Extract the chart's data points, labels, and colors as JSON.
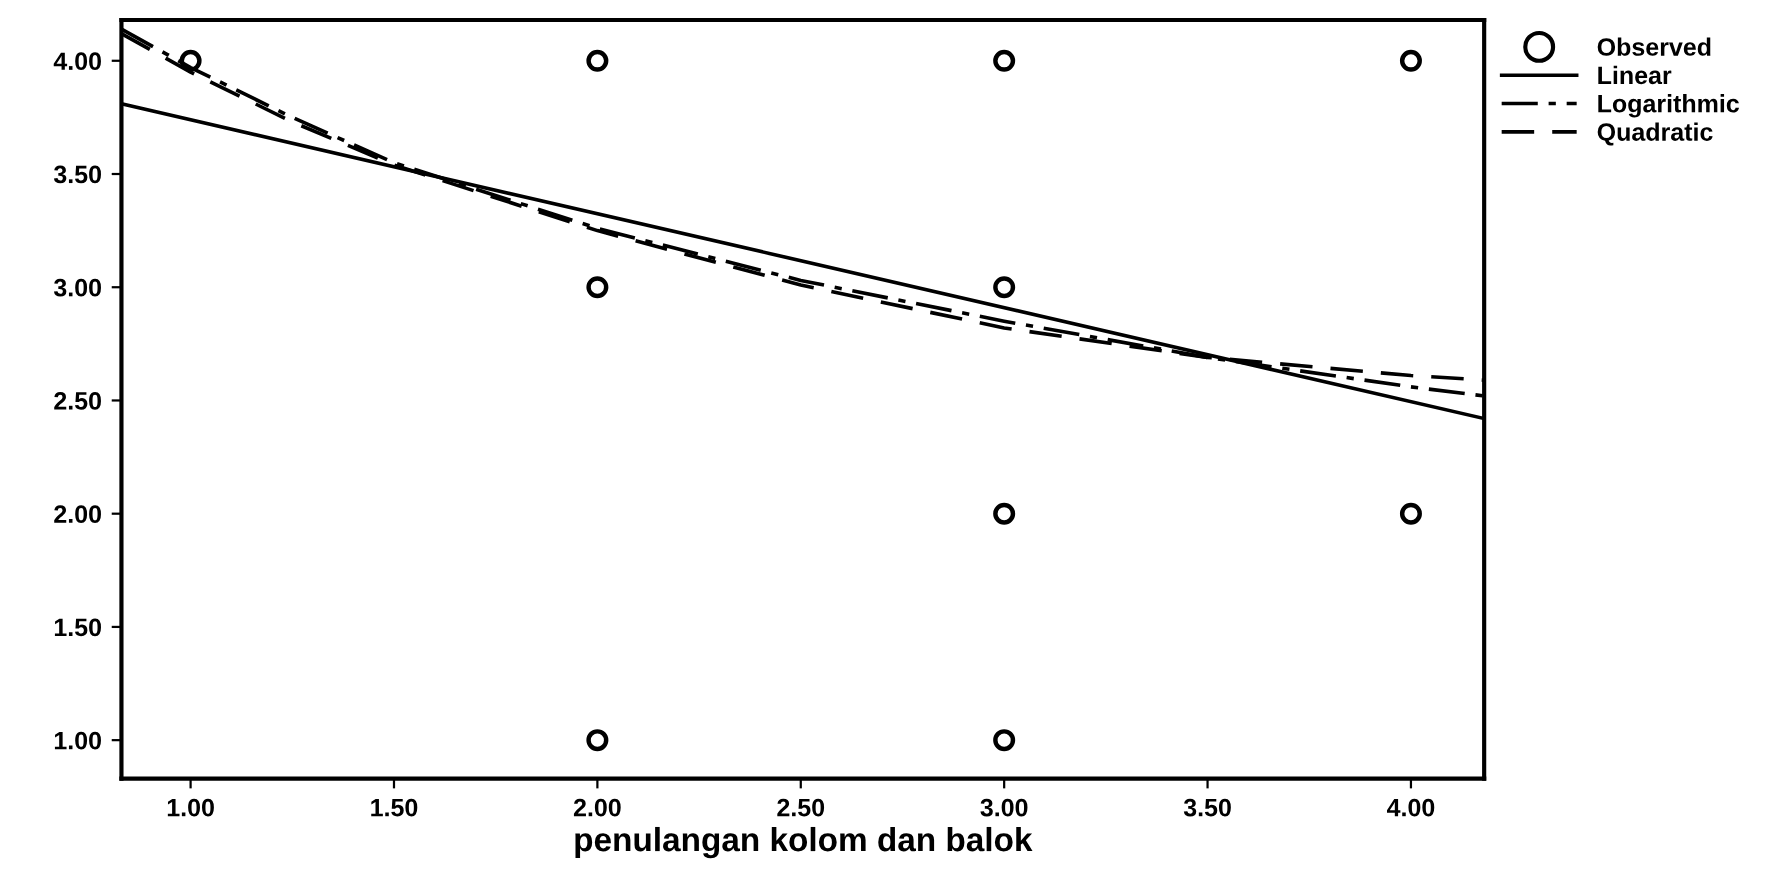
{
  "chart_data": {
    "type": "scatter",
    "xlabel": "penulangan kolom dan balok",
    "xlim": [
      0.83,
      4.18
    ],
    "ylim": [
      0.83,
      4.18
    ],
    "xticks": [
      {
        "value": 1,
        "label": "1.00"
      },
      {
        "value": 1.5,
        "label": "1.50"
      },
      {
        "value": 2,
        "label": "2.00"
      },
      {
        "value": 2.5,
        "label": "2.50"
      },
      {
        "value": 3,
        "label": "3.00"
      },
      {
        "value": 3.5,
        "label": "3.50"
      },
      {
        "value": 4,
        "label": "4.00"
      }
    ],
    "yticks": [
      {
        "value": 1,
        "label": "1.00"
      },
      {
        "value": 1.5,
        "label": "1.50"
      },
      {
        "value": 2,
        "label": "2.00"
      },
      {
        "value": 2.5,
        "label": "2.50"
      },
      {
        "value": 3,
        "label": "3.00"
      },
      {
        "value": 3.5,
        "label": "3.50"
      },
      {
        "value": 4,
        "label": "4.00"
      }
    ],
    "grid": false,
    "legend": "top right",
    "series": [
      {
        "name": "Observed",
        "marker": "circle",
        "color": "#000000",
        "x": [
          1,
          2,
          2,
          2,
          3,
          3,
          3,
          3,
          4,
          4
        ],
        "values": [
          4,
          4,
          3,
          1,
          4,
          3,
          2,
          1,
          4,
          2
        ]
      },
      {
        "name": "Linear",
        "type": "line",
        "line_style": "solid",
        "color": "#000000",
        "x": [
          0.83,
          4.18
        ],
        "values": [
          3.81,
          2.42
        ]
      },
      {
        "name": "Logarithmic",
        "type": "line",
        "line_style": "dashdot",
        "color": "#000000",
        "x": [
          0.83,
          1.0,
          1.25,
          1.5,
          2.0,
          2.5,
          3.0,
          3.5,
          4.0,
          4.18
        ],
        "values": [
          4.14,
          3.97,
          3.75,
          3.55,
          3.26,
          3.03,
          2.85,
          2.69,
          2.56,
          2.52
        ]
      },
      {
        "name": "Quadratic",
        "type": "line",
        "line_style": "dashed",
        "color": "#000000",
        "x": [
          0.83,
          1.0,
          1.25,
          1.5,
          2.0,
          2.5,
          3.0,
          3.5,
          4.0,
          4.18
        ],
        "values": [
          4.12,
          3.95,
          3.73,
          3.54,
          3.25,
          3.01,
          2.82,
          2.69,
          2.61,
          2.59
        ]
      }
    ]
  }
}
